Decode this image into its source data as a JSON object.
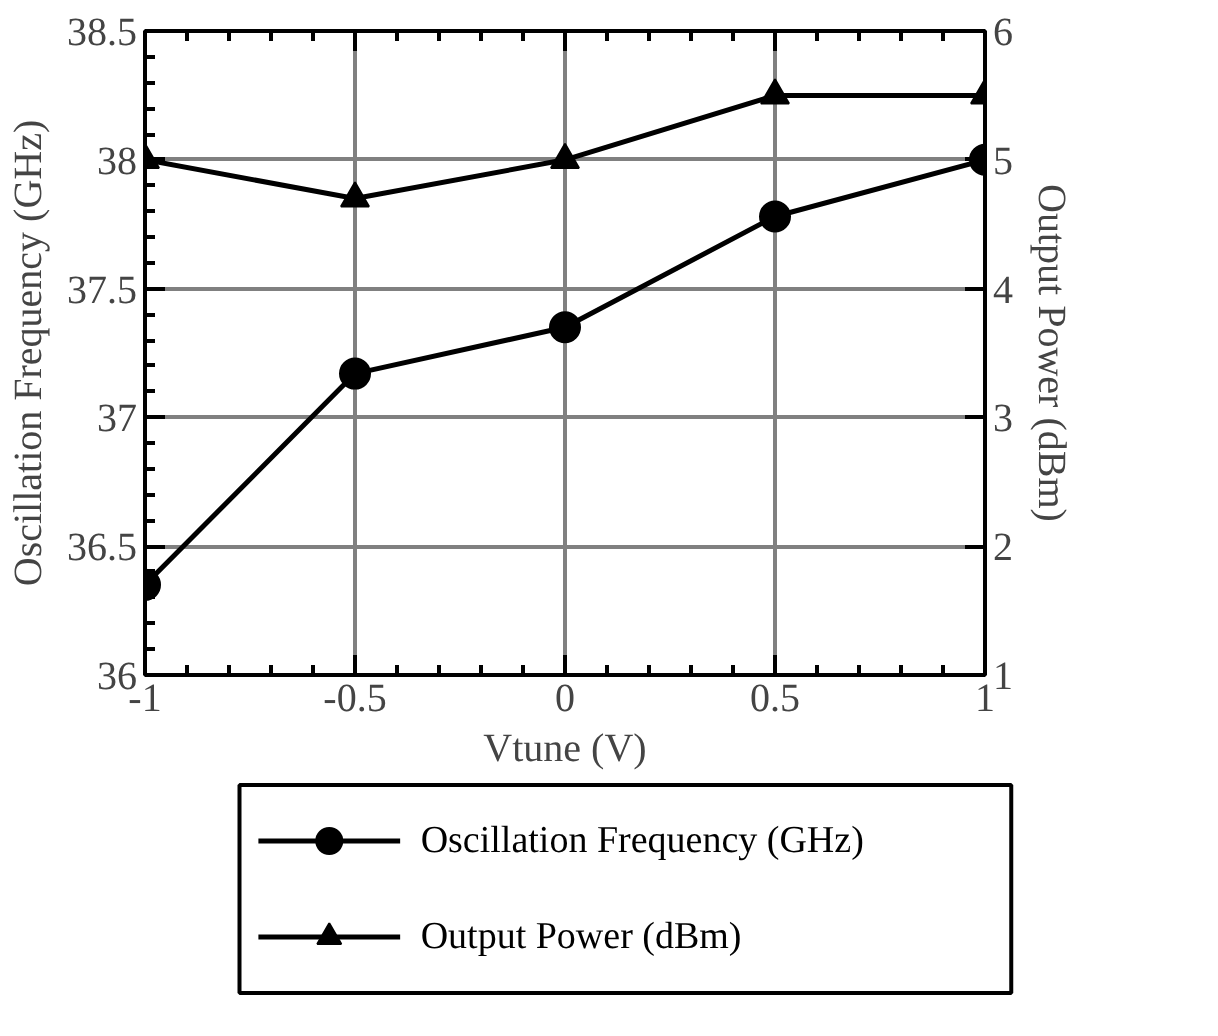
{
  "chart_data": {
    "type": "line",
    "xlabel": "Vtune (V)",
    "ylabel": "Oscillation Frequency (GHz)",
    "y2label": "Output Power (dBm)",
    "x": [
      -1,
      -0.5,
      0,
      0.5,
      1
    ],
    "series": [
      {
        "name": "Oscillation Frequency (GHz)",
        "color": "#000000",
        "marker": "circle",
        "values": [
          36.35,
          37.17,
          37.35,
          37.78,
          38.0
        ]
      },
      {
        "name": "Output Power (dBm)",
        "color": "#000000",
        "marker": "triangle",
        "axis": "y2",
        "values": [
          5.0,
          4.7,
          5.0,
          5.5,
          5.5
        ]
      }
    ],
    "xlim": [
      -1,
      1
    ],
    "xticks": [
      -1,
      -0.5,
      0,
      0.5,
      1
    ],
    "ylim": [
      36,
      38.5
    ],
    "yticks": [
      36,
      36.5,
      37,
      37.5,
      38,
      38.5
    ],
    "y2lim": [
      1,
      6
    ],
    "y2ticks": [
      1,
      2,
      3,
      4,
      5,
      6
    ],
    "grid": true,
    "legend": "bottom",
    "line_style": "solid"
  }
}
